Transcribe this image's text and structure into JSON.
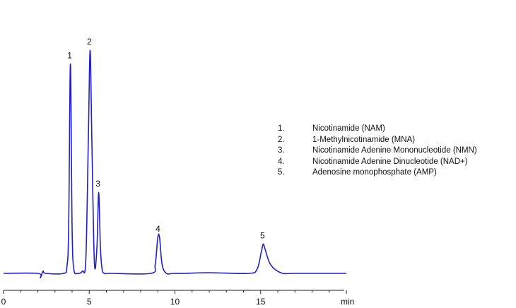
{
  "chart_data": {
    "type": "line",
    "title": "",
    "xlabel": "",
    "ylabel": "",
    "x_unit": "min",
    "xlim": [
      0,
      20
    ],
    "xticks": [
      0,
      5,
      10,
      15
    ],
    "xtick_labels": [
      "0",
      "5",
      "10",
      "15"
    ],
    "grid": false,
    "line_color": "#1f1fcf",
    "series": [
      {
        "x": [
          0,
          2.0,
          2.15,
          2.3,
          2.45,
          3.5,
          3.7,
          3.8,
          3.9,
          4.0,
          4.1,
          4.3,
          4.6,
          4.8,
          4.95,
          5.05,
          5.15,
          5.3,
          5.45,
          5.55,
          5.65,
          5.75,
          5.9,
          6.3,
          8.6,
          8.85,
          9.0,
          9.1,
          9.25,
          9.5,
          9.9,
          10.5,
          12.0,
          14.3,
          14.8,
          15.05,
          15.15,
          15.25,
          15.5,
          15.8,
          16.3,
          17.0,
          20.0
        ],
        "y": [
          0.0,
          0.0,
          -0.02,
          0.01,
          0.0,
          0.0,
          0.03,
          0.2,
          0.93,
          0.2,
          0.02,
          0.0,
          0.01,
          0.06,
          0.6,
          0.99,
          0.6,
          0.05,
          0.12,
          0.36,
          0.12,
          0.02,
          0.0,
          0.0,
          0.0,
          0.04,
          0.16,
          0.16,
          0.04,
          0.0,
          0.0,
          0.0,
          0.003,
          0.0,
          0.02,
          0.1,
          0.13,
          0.11,
          0.05,
          0.02,
          0.0,
          0.0,
          0.0
        ]
      }
    ],
    "peaks": [
      {
        "label": "1",
        "x": 3.9,
        "y": 0.93
      },
      {
        "label": "2",
        "x": 5.05,
        "y": 0.99
      },
      {
        "label": "3",
        "x": 5.55,
        "y": 0.36
      },
      {
        "label": "4",
        "x": 9.05,
        "y": 0.16
      },
      {
        "label": "5",
        "x": 15.15,
        "y": 0.13
      }
    ],
    "legend": [
      {
        "num": "1.",
        "label": "Nicotinamide (NAM)"
      },
      {
        "num": "2.",
        "label": "1-Methylnicotinamide (MNA)"
      },
      {
        "num": "3.",
        "label": "Nicotinamide Adenine Mononucleotide (NMN)"
      },
      {
        "num": "4.",
        "label": "Nicotinamide Adenine Dinucleotide (NAD+)"
      },
      {
        "num": "5.",
        "label": "Adenosine monophosphate (AMP)"
      }
    ]
  }
}
